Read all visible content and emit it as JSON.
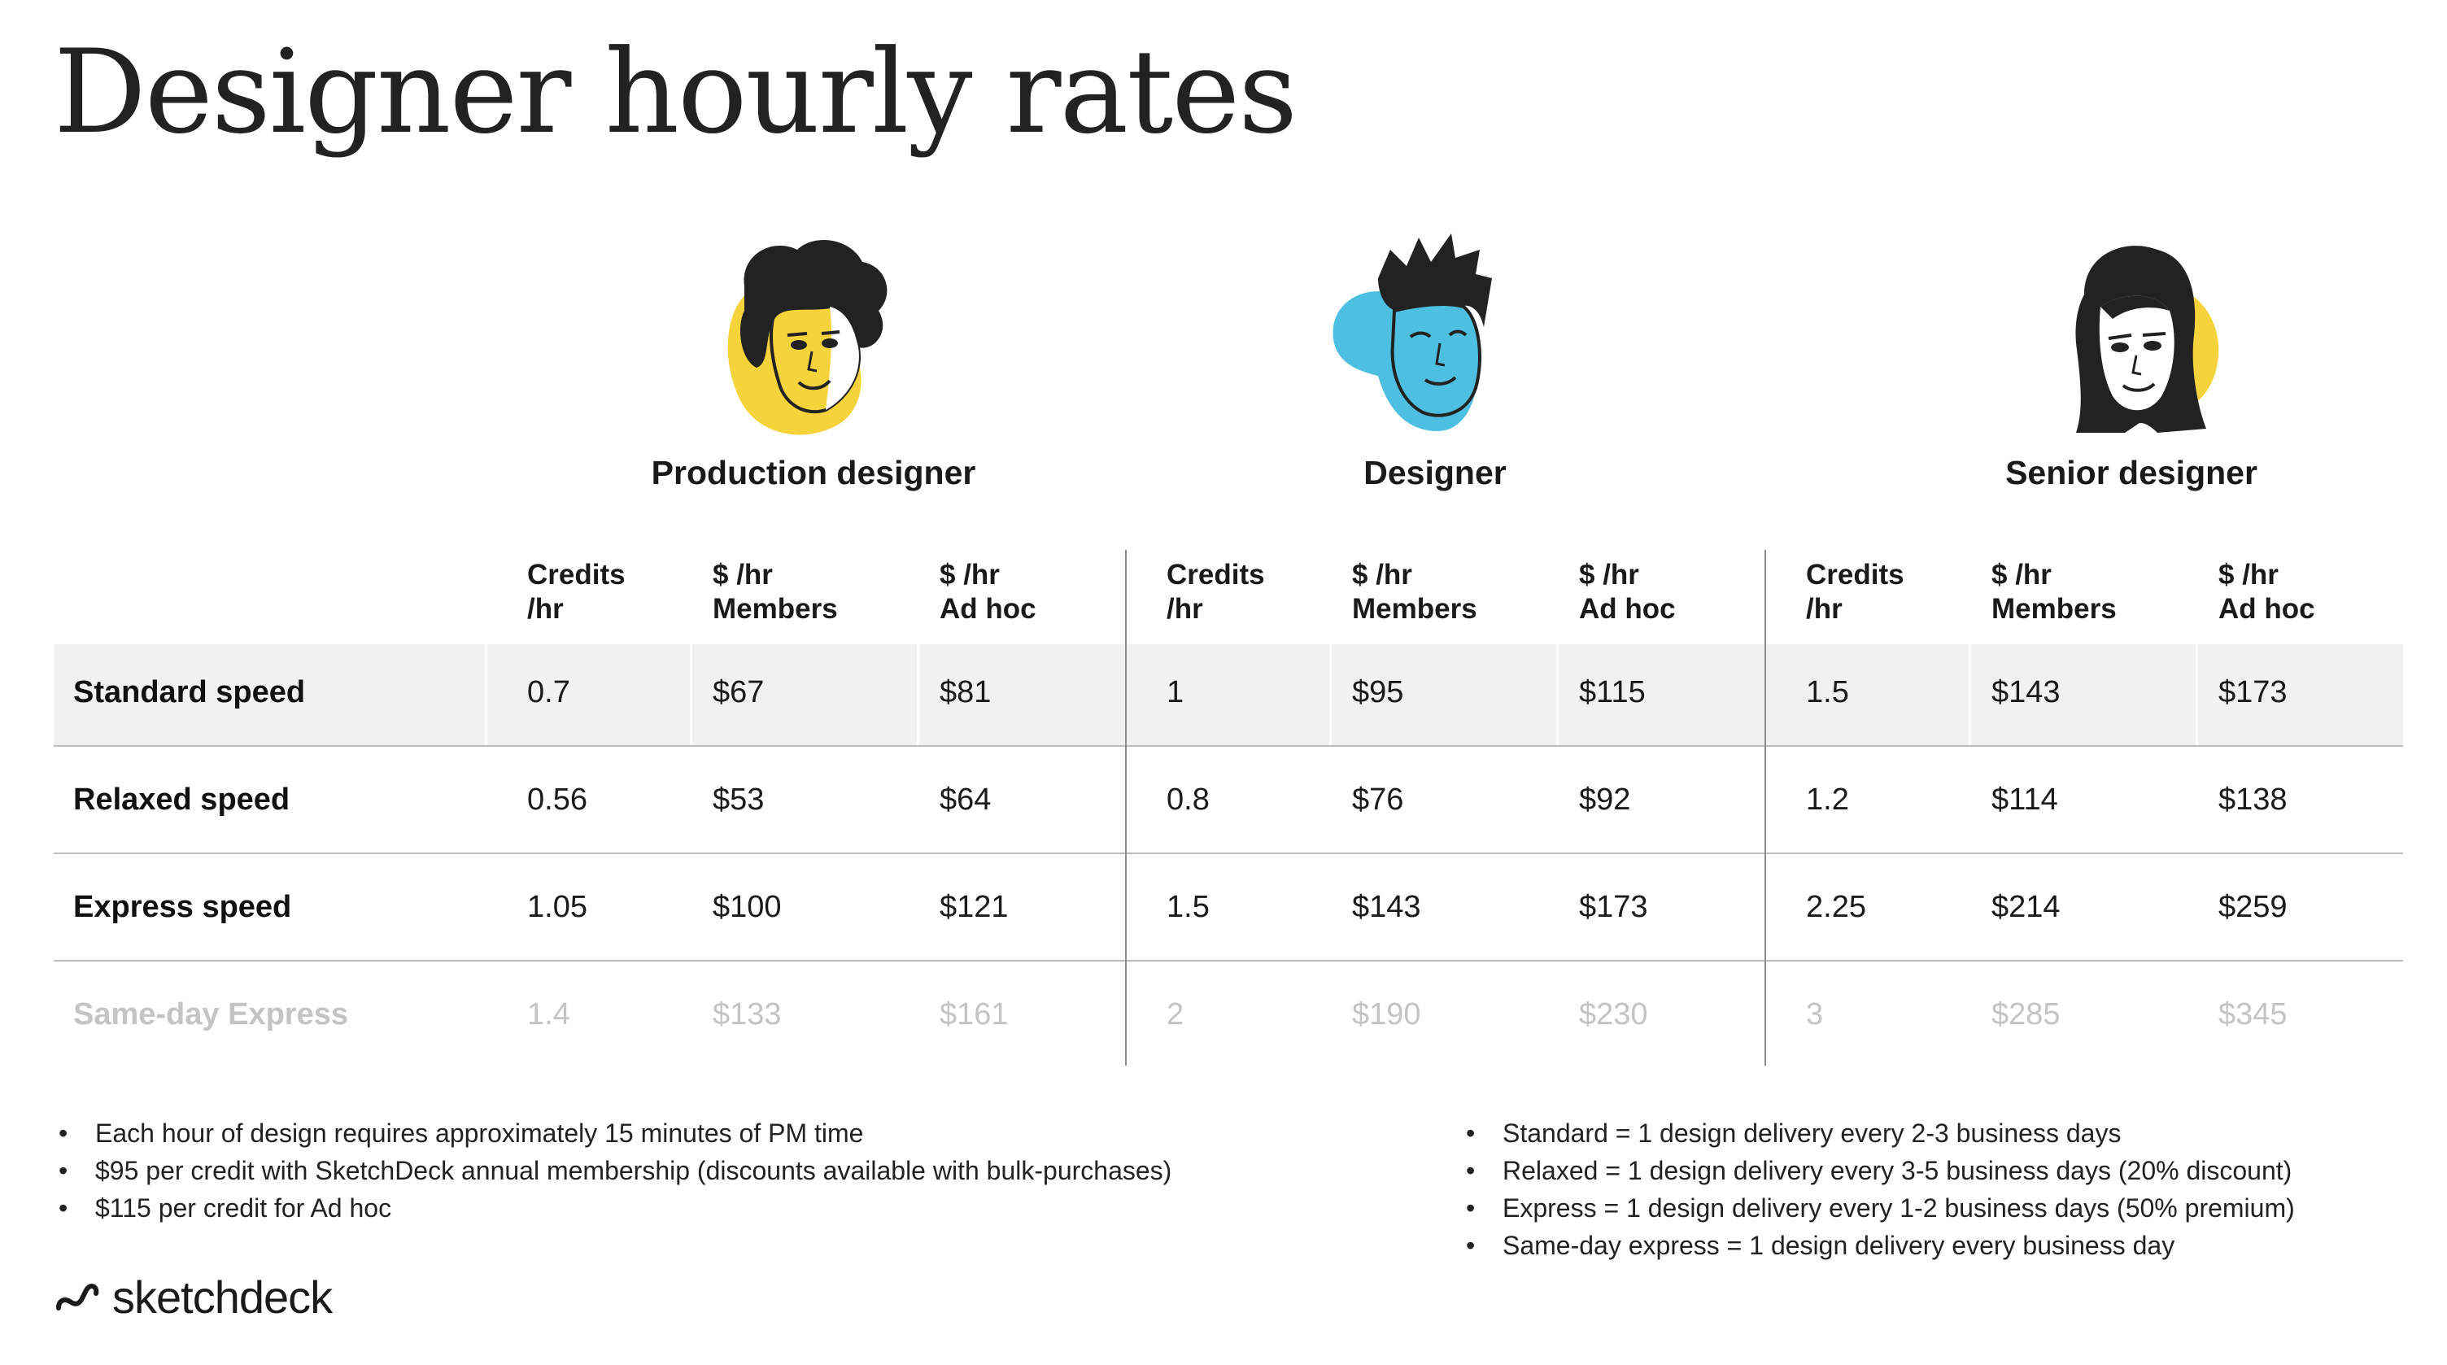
{
  "title": "Designer hourly rates",
  "roles": [
    "Production designer",
    "Designer",
    "Senior designer"
  ],
  "column_headers": [
    {
      "line1": "Credits",
      "line2": "/hr"
    },
    {
      "line1": "$ /hr",
      "line2": "Members"
    },
    {
      "line1": "$ /hr",
      "line2": "Ad hoc"
    }
  ],
  "rows": [
    {
      "label": "Standard speed",
      "values": [
        "0.7",
        "$67",
        "$81",
        "1",
        "$95",
        "$115",
        "1.5",
        "$143",
        "$173"
      ]
    },
    {
      "label": "Relaxed speed",
      "values": [
        "0.56",
        "$53",
        "$64",
        "0.8",
        "$76",
        "$92",
        "1.2",
        "$114",
        "$138"
      ]
    },
    {
      "label": "Express speed",
      "values": [
        "1.05",
        "$100",
        "$121",
        "1.5",
        "$143",
        "$173",
        "2.25",
        "$214",
        "$259"
      ]
    },
    {
      "label": "Same-day Express",
      "values": [
        "1.4",
        "$133",
        "$161",
        "2",
        "$190",
        "$230",
        "3",
        "$285",
        "$345"
      ]
    }
  ],
  "notes_left": [
    "Each hour of design requires approximately 15 minutes of PM time",
    "$95 per credit with SketchDeck annual membership (discounts available with bulk-purchases)",
    "$115 per credit for Ad hoc"
  ],
  "notes_right": [
    "Standard = 1 design delivery every 2-3 business days",
    "Relaxed = 1 design delivery every 3-5 business days (20% discount)",
    "Express = 1 design delivery every 1-2 business days (50% premium)",
    "Same-day express = 1 design delivery every business day"
  ],
  "logo_text": "sketchdeck",
  "colors": {
    "yellow": "#F4D43A",
    "blue": "#4DBFE0",
    "ink": "#222222",
    "faded": "#C4C4C4",
    "band": "#F1F1F1"
  },
  "icons": [
    "production-designer-avatar",
    "designer-avatar",
    "senior-designer-avatar",
    "sketchdeck-logo-icon"
  ]
}
